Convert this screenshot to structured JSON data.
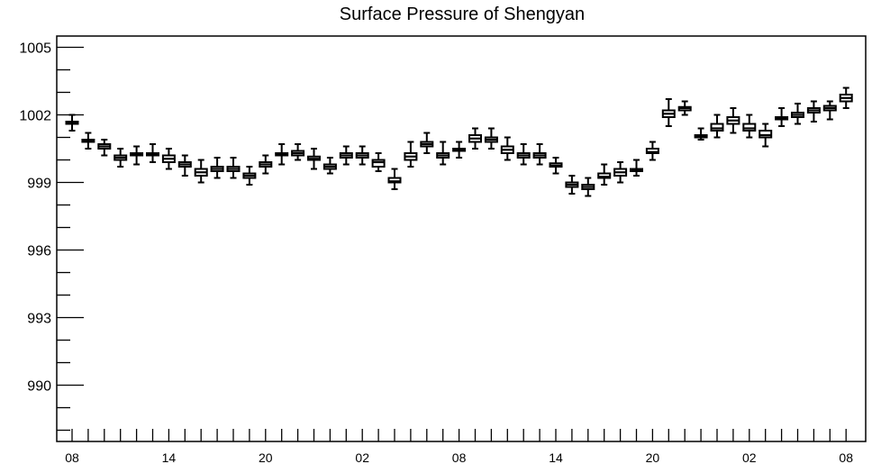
{
  "chart_data": {
    "type": "boxplot",
    "title": "Surface Pressure of Shengyan",
    "xlabel": "",
    "ylabel": "",
    "ylim": [
      987.5,
      1005.5
    ],
    "yticks": [
      990,
      993,
      996,
      999,
      1002,
      1005
    ],
    "ytick_labels": [
      "990",
      "993",
      "996",
      "999",
      "1002",
      "1005"
    ],
    "x_tick_labels": [
      "08",
      "14",
      "20",
      "02",
      "08",
      "14",
      "20",
      "02",
      "08"
    ],
    "x_tick_label_positions": [
      0,
      6,
      12,
      18,
      24,
      30,
      36,
      42,
      48
    ],
    "grid": false,
    "legend": "none",
    "box_color": "#000000",
    "series": [
      {
        "x": [
          0,
          1,
          2,
          3,
          4,
          5,
          6,
          7,
          8,
          9,
          10,
          11,
          12,
          13,
          14,
          15,
          16,
          17,
          18,
          19,
          20,
          21,
          22,
          23,
          24,
          25,
          26,
          27,
          28,
          29,
          30,
          31,
          32,
          33,
          34,
          35,
          36,
          37,
          38,
          39,
          40,
          41,
          42,
          43,
          44,
          45,
          46,
          47,
          48
        ],
        "whisker_low": [
          1001.3,
          1000.5,
          1000.2,
          999.7,
          999.8,
          999.9,
          999.6,
          999.3,
          999.0,
          999.2,
          999.2,
          998.9,
          999.4,
          999.8,
          1000.0,
          999.6,
          999.4,
          999.8,
          999.8,
          999.5,
          998.7,
          999.7,
          1000.3,
          999.8,
          1000.1,
          1000.5,
          1000.5,
          1000.0,
          999.8,
          999.8,
          999.4,
          998.5,
          998.4,
          998.9,
          999.0,
          999.3,
          1000.0,
          1001.5,
          1002.0,
          1000.9,
          1001.0,
          1001.2,
          1001.0,
          1000.6,
          1001.5,
          1001.6,
          1001.7,
          1001.8,
          1002.3
        ],
        "q1": [
          1001.6,
          1000.8,
          1000.5,
          1000.0,
          1000.2,
          1000.2,
          999.9,
          999.7,
          999.3,
          999.5,
          999.5,
          999.2,
          999.7,
          1000.2,
          1000.2,
          1000.0,
          999.6,
          1000.1,
          1000.1,
          999.7,
          999.0,
          1000.0,
          1000.6,
          1000.1,
          1000.4,
          1000.8,
          1000.8,
          1000.3,
          1000.1,
          1000.1,
          999.7,
          998.8,
          998.7,
          999.2,
          999.3,
          999.5,
          1000.3,
          1001.9,
          1002.2,
          1001.0,
          1001.3,
          1001.6,
          1001.3,
          1001.0,
          1001.8,
          1001.9,
          1002.1,
          1002.2,
          1002.6
        ],
        "median": [
          1001.65,
          1000.85,
          1000.6,
          1000.1,
          1000.25,
          1000.25,
          1000.05,
          999.8,
          999.45,
          999.6,
          999.6,
          999.3,
          999.8,
          1000.25,
          1000.3,
          1000.05,
          999.7,
          1000.2,
          1000.2,
          999.9,
          999.05,
          1000.15,
          1000.7,
          1000.2,
          1000.45,
          1000.95,
          1000.9,
          1000.45,
          1000.2,
          1000.2,
          999.75,
          998.9,
          998.8,
          999.25,
          999.45,
          999.55,
          1000.35,
          1002.05,
          1002.3,
          1001.05,
          1001.4,
          1001.75,
          1001.4,
          1001.1,
          1001.85,
          1002.0,
          1002.2,
          1002.3,
          1002.75
        ],
        "q3": [
          1001.7,
          1000.9,
          1000.7,
          1000.2,
          1000.3,
          1000.3,
          1000.2,
          999.9,
          999.6,
          999.7,
          999.7,
          999.4,
          999.9,
          1000.3,
          1000.4,
          1000.15,
          999.8,
          1000.3,
          1000.3,
          1000.0,
          999.2,
          1000.3,
          1000.8,
          1000.3,
          1000.5,
          1001.1,
          1001.0,
          1000.6,
          1000.3,
          1000.3,
          999.85,
          999.0,
          998.9,
          999.4,
          999.6,
          999.6,
          1000.5,
          1002.2,
          1002.35,
          1001.1,
          1001.6,
          1001.9,
          1001.6,
          1001.3,
          1001.9,
          1002.1,
          1002.3,
          1002.4,
          1002.9
        ],
        "whisker_high": [
          1002.0,
          1001.2,
          1000.9,
          1000.5,
          1000.6,
          1000.7,
          1000.5,
          1000.2,
          1000.0,
          1000.1,
          1000.1,
          999.7,
          1000.2,
          1000.7,
          1000.7,
          1000.5,
          1000.1,
          1000.6,
          1000.6,
          1000.3,
          999.6,
          1000.8,
          1001.2,
          1000.8,
          1000.8,
          1001.4,
          1001.4,
          1001.0,
          1000.7,
          1000.7,
          1000.1,
          999.3,
          999.2,
          999.8,
          999.9,
          1000.0,
          1000.8,
          1002.7,
          1002.6,
          1001.4,
          1002.0,
          1002.3,
          1002.0,
          1001.6,
          1002.3,
          1002.5,
          1002.6,
          1002.6,
          1003.2
        ]
      }
    ]
  }
}
